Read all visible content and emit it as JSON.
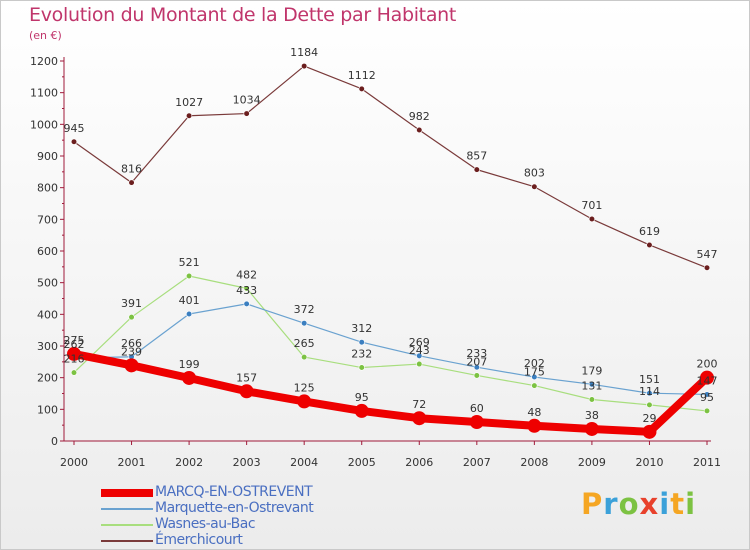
{
  "title": "Evolution du Montant de la Dette par Habitant",
  "subtitle": "(en €)",
  "logo": {
    "text": "Proxiti",
    "letters": [
      {
        "ch": "P",
        "color": "#f5a623"
      },
      {
        "ch": "r",
        "color": "#3ba1d9"
      },
      {
        "ch": "o",
        "color": "#7cc242"
      },
      {
        "ch": "x",
        "color": "#e8412c"
      },
      {
        "ch": "i",
        "color": "#3ba1d9"
      },
      {
        "ch": "t",
        "color": "#f5a623"
      },
      {
        "ch": "i",
        "color": "#7cc242"
      }
    ]
  },
  "chart_data": {
    "type": "line",
    "title": "Evolution du Montant de la Dette par Habitant",
    "ylabel": "(en €)",
    "xlabel": "",
    "x": [
      "2000",
      "2001",
      "2002",
      "2003",
      "2004",
      "2005",
      "2006",
      "2007",
      "2008",
      "2009",
      "2010",
      "2011"
    ],
    "ylim": [
      0,
      1200
    ],
    "yticks": [
      0,
      100,
      200,
      300,
      400,
      500,
      600,
      700,
      800,
      900,
      1000,
      1100,
      1200
    ],
    "grid": false,
    "legend_position": "bottom-left",
    "series": [
      {
        "name": "Émerchicourt",
        "color": "#7a3a3a",
        "width": 1.2,
        "marker": 5,
        "marker_color": "#6b1e1e",
        "values": [
          945,
          816,
          1027,
          1034,
          1184,
          1112,
          982,
          857,
          803,
          701,
          619,
          547
        ]
      },
      {
        "name": "Wasnes-au-Bac",
        "color": "#a8de7e",
        "width": 1.2,
        "marker": 5,
        "marker_color": "#7cc242",
        "values": [
          216,
          391,
          521,
          482,
          265,
          232,
          243,
          207,
          175,
          131,
          114,
          95
        ]
      },
      {
        "name": "Marquette-en-Ostrevant",
        "color": "#6aa2d0",
        "width": 1.2,
        "marker": 5,
        "marker_color": "#3b7fc0",
        "values": [
          262,
          266,
          401,
          433,
          372,
          312,
          269,
          233,
          202,
          179,
          151,
          147
        ]
      },
      {
        "name": "MARCQ-EN-OSTREVENT",
        "color": "#ee0000",
        "width": 8,
        "marker": 7,
        "marker_color": "#ee0000",
        "values": [
          275,
          239,
          199,
          157,
          125,
          95,
          72,
          60,
          48,
          38,
          29,
          200
        ]
      }
    ],
    "data_labels": [
      {
        "series": "Émerchicourt",
        "labels": [
          "945",
          "816",
          "1027",
          "1034",
          "1184",
          "1112",
          "982",
          "857",
          "803",
          "701",
          "619",
          "547"
        ]
      },
      {
        "series": "Wasnes-au-Bac",
        "labels": [
          "216",
          "391",
          "521",
          "482",
          "265",
          "232",
          "243",
          "207",
          "175",
          "131",
          "114",
          "95"
        ]
      },
      {
        "series": "Marquette-en-Ostrevant",
        "labels": [
          "262",
          "266",
          "401",
          "433",
          "372",
          "312",
          "269",
          "233",
          "202",
          "179",
          "151",
          "147"
        ]
      },
      {
        "series": "MARCQ-EN-OSTREVENT",
        "labels": [
          "275",
          "239",
          "199",
          "157",
          "125",
          "95",
          "72",
          "60",
          "48",
          "38",
          "29",
          "200"
        ]
      }
    ]
  },
  "legend": [
    {
      "label": "MARCQ-EN-OSTREVENT",
      "color": "#ee0000",
      "thickness": 8
    },
    {
      "label": "Marquette-en-Ostrevant",
      "color": "#6aa2d0",
      "thickness": 2
    },
    {
      "label": "Wasnes-au-Bac",
      "color": "#a8de7e",
      "thickness": 2
    },
    {
      "label": "Émerchicourt",
      "color": "#7a3a3a",
      "thickness": 2
    }
  ]
}
